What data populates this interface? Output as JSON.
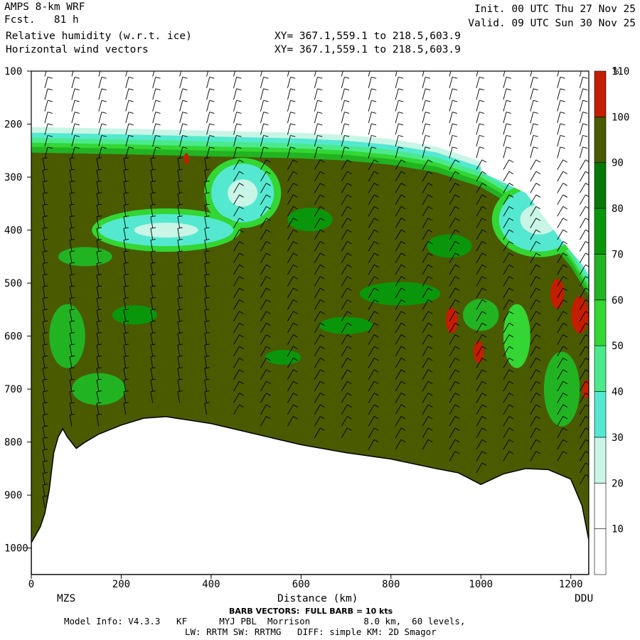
{
  "header": {
    "title_left_1": "AMPS 8-km WRF",
    "title_left_2": "Fcst.   81 h",
    "init": "Init. 00 UTC Thu 27 Nov 25",
    "valid": "Valid. 09 UTC Sun 30 Nov 25",
    "field_1": "Relative humidity (w.r.t. ice)",
    "field_2": "Horizontal wind vectors",
    "xy_1": "XY= 367.1,559.1 to 218.5,603.9",
    "xy_2": "XY= 367.1,559.1 to 218.5,603.9"
  },
  "footer": {
    "left_station": "MZS",
    "right_station": "DDU",
    "barb_note": "BARB VECTORS:  FULL BARB = 10 kts",
    "model_info_1": "Model Info: V4.3.3   KF      MYJ PBL  Morrison          8.0 km,  60 levels,",
    "model_info_2": "LW: RRTM SW: RRTMG   DIFF: simple KM: 2D Smagor"
  },
  "chart_data": {
    "type": "heatmap",
    "xlabel": "Distance (km)",
    "ylabel": "",
    "xlim": [
      0,
      1240
    ],
    "ylim": [
      1050,
      100
    ],
    "x_ticks": [
      0,
      200,
      400,
      600,
      800,
      1000,
      1200
    ],
    "y_ticks": [
      100,
      200,
      300,
      400,
      500,
      600,
      700,
      800,
      900,
      1000
    ],
    "colorbar": {
      "unit": "%",
      "levels": [
        10,
        20,
        30,
        40,
        50,
        60,
        70,
        80,
        90,
        100,
        110
      ],
      "colors": [
        "#ffffff",
        "#ffffff",
        "#c8f5e6",
        "#55e8d0",
        "#4aea8c",
        "#33d633",
        "#22b322",
        "#0a960a",
        "#077807",
        "#4a5a00",
        "#c41e00"
      ]
    },
    "terrain_profile": [
      [
        0,
        990
      ],
      [
        10,
        975
      ],
      [
        20,
        960
      ],
      [
        30,
        935
      ],
      [
        40,
        890
      ],
      [
        50,
        820
      ],
      [
        60,
        790
      ],
      [
        70,
        775
      ],
      [
        80,
        790
      ],
      [
        100,
        812
      ],
      [
        120,
        800
      ],
      [
        150,
        785
      ],
      [
        200,
        768
      ],
      [
        250,
        755
      ],
      [
        300,
        752
      ],
      [
        400,
        765
      ],
      [
        500,
        785
      ],
      [
        600,
        805
      ],
      [
        700,
        820
      ],
      [
        800,
        832
      ],
      [
        900,
        850
      ],
      [
        950,
        858
      ],
      [
        1000,
        880
      ],
      [
        1050,
        860
      ],
      [
        1100,
        850
      ],
      [
        1150,
        852
      ],
      [
        1200,
        870
      ],
      [
        1225,
        920
      ],
      [
        1240,
        985
      ]
    ],
    "moist_top_profile": [
      [
        0,
        235
      ],
      [
        200,
        238
      ],
      [
        400,
        242
      ],
      [
        600,
        246
      ],
      [
        700,
        250
      ],
      [
        800,
        258
      ],
      [
        900,
        272
      ],
      [
        1000,
        300
      ],
      [
        1100,
        350
      ],
      [
        1200,
        450
      ],
      [
        1240,
        505
      ]
    ],
    "dry_regions": [
      {
        "name": "upper-dry-pocket",
        "cx": 470,
        "cy": 330,
        "rx": 70,
        "ry": 55
      },
      {
        "name": "lower-dry-tongue",
        "cx": 300,
        "cy": 400,
        "rx": 150,
        "ry": 30
      },
      {
        "name": "right-dry-zone",
        "cx": 1130,
        "cy": 380,
        "rx": 90,
        "ry": 60
      }
    ],
    "saturated_patches": [
      {
        "cx": 345,
        "cy": 265,
        "r": 6
      },
      {
        "cx": 935,
        "cy": 570,
        "r": 14
      },
      {
        "cx": 995,
        "cy": 630,
        "r": 12
      },
      {
        "cx": 1170,
        "cy": 520,
        "r": 16
      },
      {
        "cx": 1220,
        "cy": 560,
        "r": 20
      },
      {
        "cx": 1235,
        "cy": 700,
        "r": 10
      }
    ],
    "barb_columns_km": [
      30,
      90,
      150,
      210,
      270,
      330,
      390,
      450,
      510,
      570,
      630,
      690,
      750,
      810,
      870,
      930,
      990,
      1050,
      1110,
      1170,
      1220
    ]
  }
}
